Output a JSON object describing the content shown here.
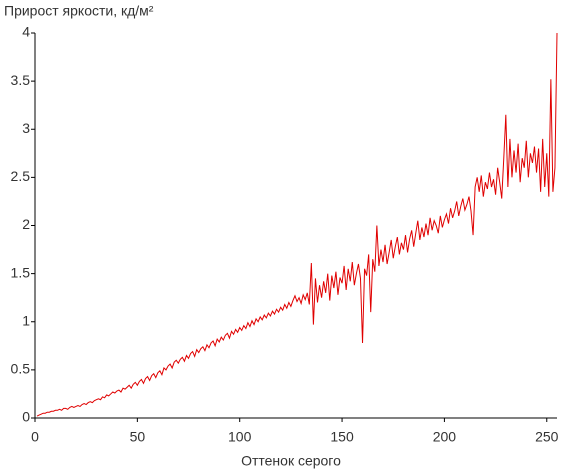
{
  "chart_data": {
    "type": "line",
    "title": "Прирост яркости, кд/м²",
    "x_label": "Оттенок серого",
    "x": [
      1,
      2,
      3,
      4,
      5,
      6,
      7,
      8,
      9,
      10,
      11,
      12,
      13,
      14,
      15,
      16,
      17,
      18,
      19,
      20,
      21,
      22,
      23,
      24,
      25,
      26,
      27,
      28,
      29,
      30,
      31,
      32,
      33,
      34,
      35,
      36,
      37,
      38,
      39,
      40,
      41,
      42,
      43,
      44,
      45,
      46,
      47,
      48,
      49,
      50,
      51,
      52,
      53,
      54,
      55,
      56,
      57,
      58,
      59,
      60,
      61,
      62,
      63,
      64,
      65,
      66,
      67,
      68,
      69,
      70,
      71,
      72,
      73,
      74,
      75,
      76,
      77,
      78,
      79,
      80,
      81,
      82,
      83,
      84,
      85,
      86,
      87,
      88,
      89,
      90,
      91,
      92,
      93,
      94,
      95,
      96,
      97,
      98,
      99,
      100,
      101,
      102,
      103,
      104,
      105,
      106,
      107,
      108,
      109,
      110,
      111,
      112,
      113,
      114,
      115,
      116,
      117,
      118,
      119,
      120,
      121,
      122,
      123,
      124,
      125,
      126,
      127,
      128,
      129,
      130,
      131,
      132,
      133,
      134,
      135,
      136,
      137,
      138,
      139,
      140,
      141,
      142,
      143,
      144,
      145,
      146,
      147,
      148,
      149,
      150,
      151,
      152,
      153,
      154,
      155,
      156,
      157,
      158,
      159,
      160,
      161,
      162,
      163,
      164,
      165,
      166,
      167,
      168,
      169,
      170,
      171,
      172,
      173,
      174,
      175,
      176,
      177,
      178,
      179,
      180,
      181,
      182,
      183,
      184,
      185,
      186,
      187,
      188,
      189,
      190,
      191,
      192,
      193,
      194,
      195,
      196,
      197,
      198,
      199,
      200,
      201,
      202,
      203,
      204,
      205,
      206,
      207,
      208,
      209,
      210,
      211,
      212,
      213,
      214,
      215,
      216,
      217,
      218,
      219,
      220,
      221,
      222,
      223,
      224,
      225,
      226,
      227,
      228,
      229,
      230,
      231,
      232,
      233,
      234,
      235,
      236,
      237,
      238,
      239,
      240,
      241,
      242,
      243,
      244,
      245,
      246,
      247,
      248,
      249,
      250,
      251,
      252,
      253,
      254,
      255
    ],
    "series": [
      {
        "color": "#e00000",
        "values": [
          0.02,
          0.03,
          0.04,
          0.05,
          0.05,
          0.06,
          0.06,
          0.07,
          0.07,
          0.08,
          0.08,
          0.09,
          0.08,
          0.1,
          0.1,
          0.09,
          0.11,
          0.12,
          0.11,
          0.12,
          0.13,
          0.12,
          0.14,
          0.15,
          0.14,
          0.16,
          0.17,
          0.16,
          0.18,
          0.19,
          0.2,
          0.19,
          0.22,
          0.21,
          0.24,
          0.23,
          0.25,
          0.27,
          0.26,
          0.28,
          0.29,
          0.27,
          0.31,
          0.3,
          0.32,
          0.34,
          0.31,
          0.35,
          0.37,
          0.34,
          0.38,
          0.4,
          0.36,
          0.41,
          0.43,
          0.39,
          0.44,
          0.46,
          0.42,
          0.47,
          0.49,
          0.45,
          0.52,
          0.5,
          0.54,
          0.56,
          0.52,
          0.58,
          0.6,
          0.57,
          0.61,
          0.63,
          0.59,
          0.65,
          0.62,
          0.67,
          0.69,
          0.64,
          0.71,
          0.68,
          0.72,
          0.74,
          0.7,
          0.76,
          0.73,
          0.78,
          0.8,
          0.75,
          0.82,
          0.79,
          0.84,
          0.81,
          0.86,
          0.88,
          0.83,
          0.9,
          0.87,
          0.92,
          0.89,
          0.94,
          0.91,
          0.96,
          0.93,
          0.99,
          0.95,
          1.01,
          0.97,
          1.03,
          1.0,
          1.05,
          1.02,
          1.07,
          1.04,
          1.09,
          1.06,
          1.11,
          1.08,
          1.13,
          1.1,
          1.15,
          1.12,
          1.18,
          1.14,
          1.2,
          1.16,
          1.22,
          1.27,
          1.21,
          1.25,
          1.19,
          1.28,
          1.23,
          1.3,
          1.18,
          1.61,
          0.97,
          1.45,
          1.2,
          1.38,
          1.25,
          1.42,
          1.3,
          1.5,
          1.22,
          1.48,
          1.35,
          1.52,
          1.28,
          1.46,
          1.4,
          1.58,
          1.33,
          1.55,
          1.42,
          1.62,
          1.38,
          1.5,
          1.6,
          1.45,
          0.78,
          1.55,
          1.48,
          1.7,
          1.1,
          1.65,
          1.52,
          2.0,
          1.58,
          1.75,
          1.62,
          1.8,
          1.6,
          1.72,
          1.85,
          1.66,
          1.78,
          1.88,
          1.7,
          1.82,
          1.75,
          1.9,
          1.72,
          1.86,
          1.95,
          1.78,
          1.92,
          2.05,
          1.85,
          1.98,
          1.88,
          2.02,
          1.9,
          2.08,
          1.95,
          2.05,
          2.0,
          1.92,
          2.1,
          1.98,
          2.06,
          2.12,
          2.02,
          2.18,
          2.08,
          2.15,
          2.25,
          2.1,
          2.2,
          2.28,
          2.16,
          2.22,
          2.3,
          2.15,
          1.9,
          2.4,
          2.5,
          2.35,
          2.52,
          2.3,
          2.45,
          2.38,
          2.55,
          2.4,
          2.48,
          2.32,
          2.6,
          2.45,
          2.28,
          2.7,
          3.15,
          2.4,
          2.9,
          2.5,
          2.78,
          2.55,
          2.85,
          2.45,
          2.7,
          2.6,
          2.88,
          2.5,
          2.75,
          2.65,
          2.82,
          2.55,
          2.8,
          2.35,
          2.9,
          2.4,
          2.75,
          2.3,
          3.52,
          2.35,
          2.6,
          4.0
        ]
      }
    ],
    "xlim": [
      0,
      255
    ],
    "ylim": [
      0,
      4
    ],
    "xticks": [
      0,
      50,
      100,
      150,
      200,
      250
    ],
    "yticks": [
      0,
      0.5,
      1,
      1.5,
      2,
      2.5,
      3,
      3.5,
      4
    ]
  }
}
